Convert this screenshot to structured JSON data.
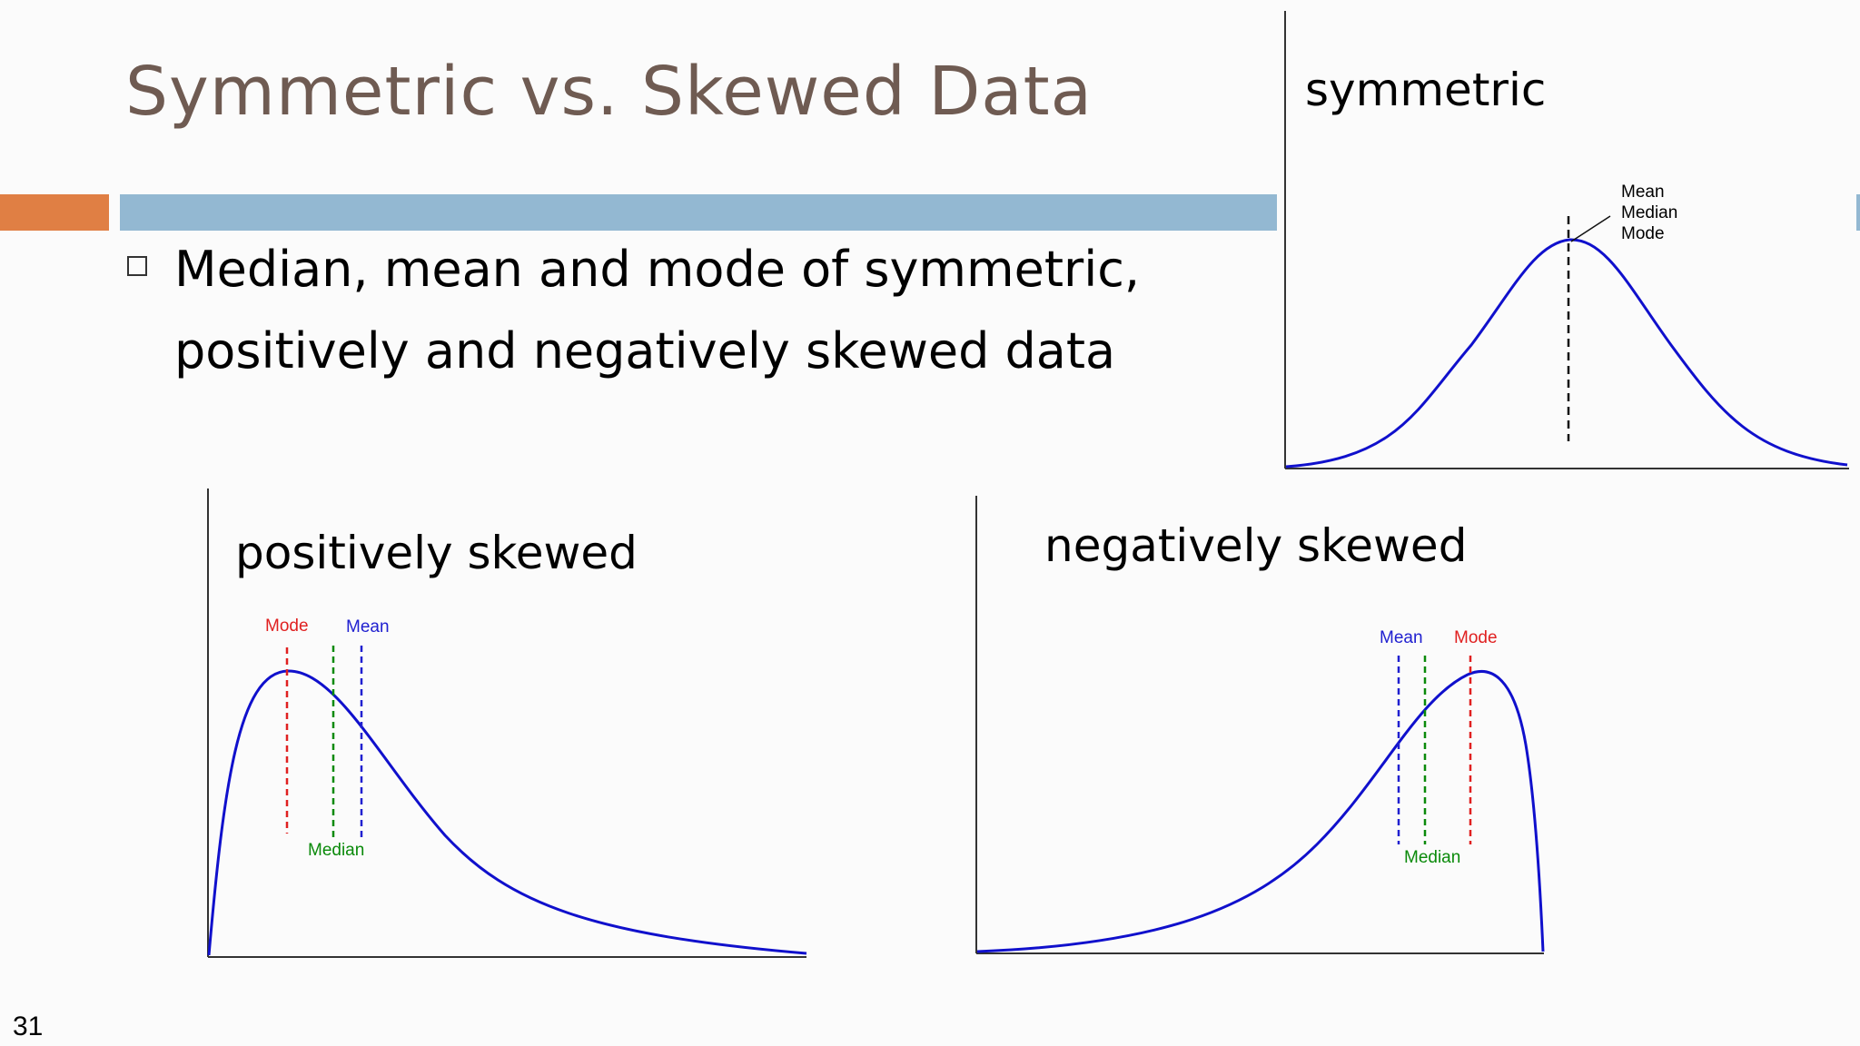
{
  "slide": {
    "title": "Symmetric vs. Skewed Data",
    "bullet_text": "Median, mean and mode of symmetric, positively and negatively skewed data",
    "page_number": "31"
  },
  "colors": {
    "title": "#6f5b52",
    "accent_bar": "#e07f44",
    "main_bar": "#93b8d2",
    "curve": "#1010cc",
    "mode": "#e02020",
    "median": "#0a8a0a",
    "mean": "#2020d0",
    "axis": "#333333"
  },
  "charts": {
    "symmetric": {
      "title": "symmetric",
      "labels": [
        "Mean",
        "Median",
        "Mode"
      ]
    },
    "positive": {
      "title": "positively skewed",
      "mode_label": "Mode",
      "mean_label": "Mean",
      "median_label": "Median"
    },
    "negative": {
      "title": "negatively skewed",
      "mean_label": "Mean",
      "mode_label": "Mode",
      "median_label": "Median"
    }
  }
}
